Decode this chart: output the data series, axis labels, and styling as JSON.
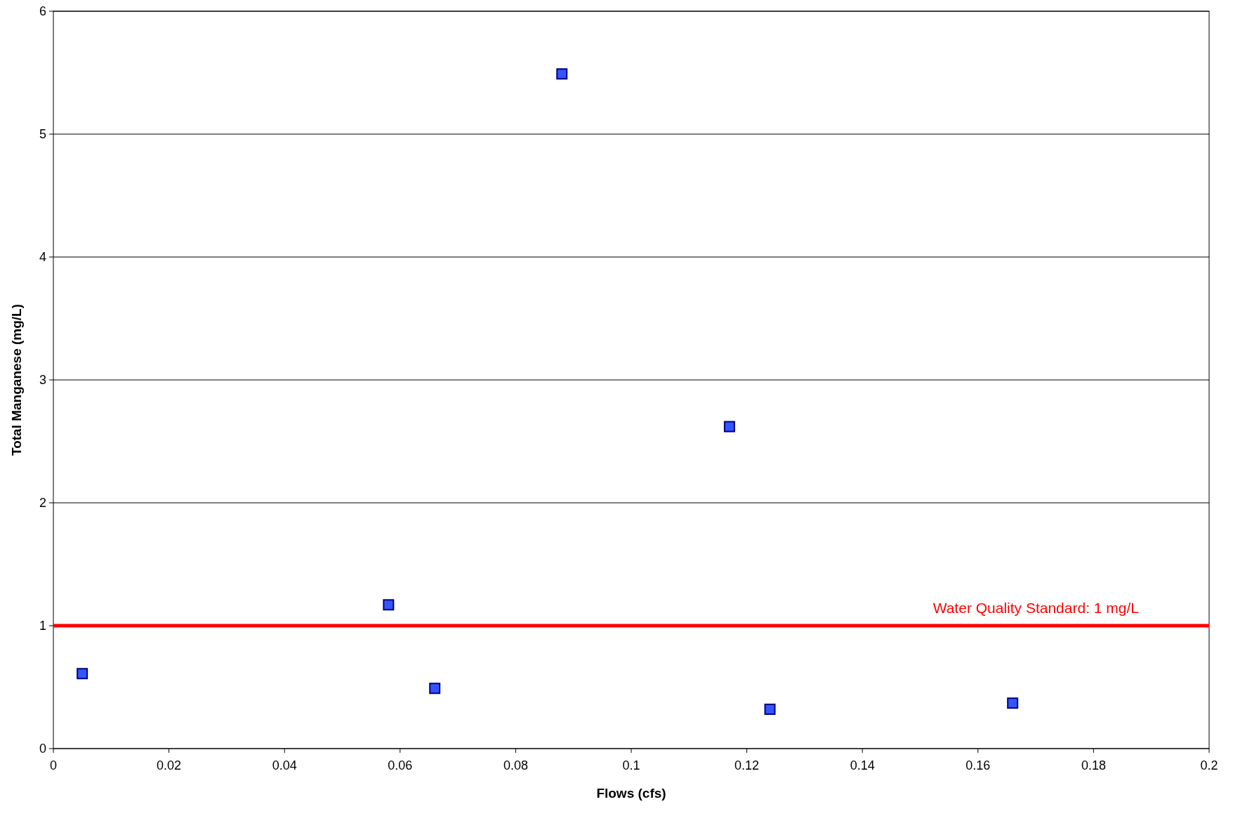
{
  "chart_data": {
    "type": "scatter",
    "xlabel": "Flows (cfs)",
    "ylabel": "Total Manganese (mg/L)",
    "x": [
      0.005,
      0.058,
      0.066,
      0.088,
      0.117,
      0.124,
      0.166
    ],
    "series": [
      {
        "color": "#3355ff",
        "values": [
          0.61,
          1.17,
          0.49,
          5.49,
          2.62,
          0.32,
          0.37
        ]
      }
    ],
    "xlim": [
      0,
      0.2
    ],
    "ylim": [
      0,
      6
    ],
    "xticks": [
      0,
      0.02,
      0.04,
      0.06,
      0.08,
      0.1,
      0.12,
      0.14,
      0.16,
      0.18,
      0.2
    ],
    "yticks": [
      0,
      1,
      2,
      3,
      4,
      5,
      6
    ],
    "grid": "y",
    "marker": "square",
    "ref_lines": [
      {
        "axis": "y",
        "value": 1,
        "label": "Water Quality Standard: 1 mg/L",
        "color": "#ff0000"
      }
    ]
  }
}
